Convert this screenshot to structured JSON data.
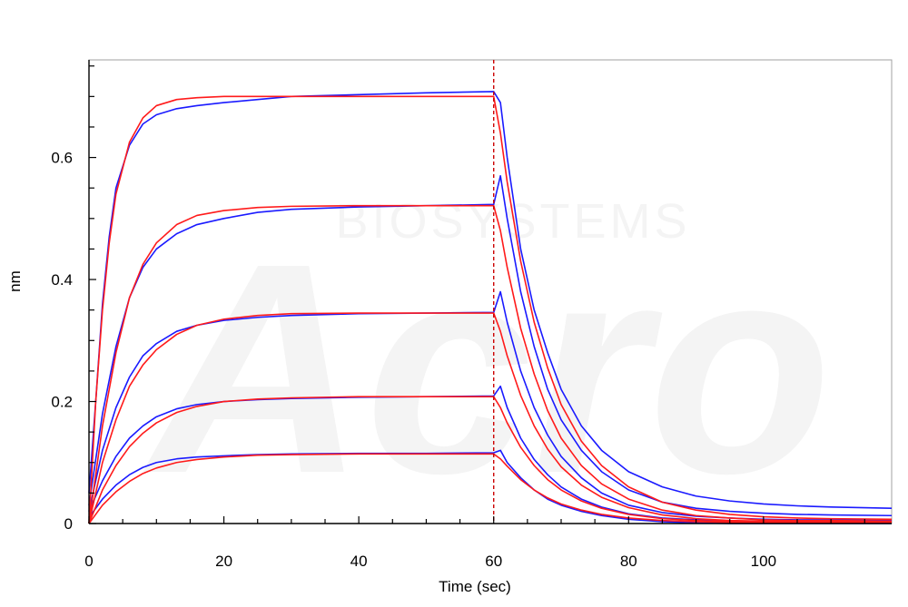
{
  "watermark": {
    "brand": "Acro",
    "sub": "BIOSYSTEMS"
  },
  "chart_data": {
    "type": "line",
    "title": "",
    "xlabel": "Time (sec)",
    "ylabel": "nm",
    "xlim": [
      0,
      119
    ],
    "ylim": [
      0,
      0.76
    ],
    "xticks": [
      0,
      20,
      40,
      60,
      80,
      100
    ],
    "xtick_labels": [
      "0",
      "20",
      "40",
      "60",
      "80",
      "100"
    ],
    "yticks": [
      0,
      0.2,
      0.4,
      0.6
    ],
    "ytick_labels": [
      "0",
      "0.2",
      "0.4",
      "0.6"
    ],
    "grid": false,
    "legend": "none",
    "dissociation_start": 60,
    "colors": {
      "measured": "#1a1aff",
      "fit": "#ff1a1a",
      "marker": "#cc0000"
    },
    "series": [
      {
        "role": "measured",
        "x": [
          0,
          1,
          2,
          3,
          4,
          6,
          8,
          10,
          13,
          16,
          20,
          25,
          30,
          40,
          50,
          60,
          61,
          62,
          64,
          66,
          68,
          70,
          73,
          76,
          80,
          85,
          90,
          95,
          100,
          105,
          110,
          119
        ],
        "y": [
          0.05,
          0.2,
          0.36,
          0.47,
          0.55,
          0.62,
          0.655,
          0.67,
          0.68,
          0.685,
          0.69,
          0.695,
          0.7,
          0.703,
          0.706,
          0.708,
          0.69,
          0.6,
          0.45,
          0.35,
          0.28,
          0.22,
          0.16,
          0.12,
          0.085,
          0.06,
          0.045,
          0.037,
          0.032,
          0.029,
          0.027,
          0.025
        ]
      },
      {
        "role": "fit",
        "x": [
          0,
          1,
          2,
          3,
          4,
          6,
          8,
          10,
          13,
          16,
          20,
          25,
          30,
          40,
          50,
          60,
          61,
          62,
          64,
          66,
          68,
          70,
          73,
          76,
          80,
          85,
          90,
          95,
          100,
          105,
          110,
          119
        ],
        "y": [
          0.0,
          0.2,
          0.35,
          0.46,
          0.54,
          0.625,
          0.665,
          0.685,
          0.695,
          0.698,
          0.7,
          0.7,
          0.7,
          0.7,
          0.7,
          0.7,
          0.64,
          0.56,
          0.43,
          0.33,
          0.255,
          0.195,
          0.135,
          0.095,
          0.06,
          0.035,
          0.022,
          0.015,
          0.011,
          0.009,
          0.008,
          0.007
        ]
      },
      {
        "role": "measured",
        "x": [
          0,
          2,
          4,
          6,
          8,
          10,
          13,
          16,
          20,
          25,
          30,
          40,
          50,
          60,
          61,
          62,
          64,
          66,
          68,
          70,
          73,
          76,
          80,
          85,
          90,
          95,
          100,
          105,
          110,
          119
        ],
        "y": [
          0.03,
          0.18,
          0.29,
          0.37,
          0.42,
          0.45,
          0.475,
          0.49,
          0.5,
          0.51,
          0.515,
          0.519,
          0.521,
          0.523,
          0.57,
          0.5,
          0.38,
          0.29,
          0.22,
          0.17,
          0.12,
          0.085,
          0.055,
          0.035,
          0.025,
          0.02,
          0.017,
          0.015,
          0.014,
          0.013
        ]
      },
      {
        "role": "fit",
        "x": [
          0,
          2,
          4,
          6,
          8,
          10,
          13,
          16,
          20,
          25,
          30,
          40,
          50,
          60,
          61,
          62,
          64,
          66,
          68,
          70,
          73,
          76,
          80,
          85,
          90,
          95,
          100,
          105,
          110,
          119
        ],
        "y": [
          0.0,
          0.16,
          0.28,
          0.37,
          0.425,
          0.46,
          0.49,
          0.505,
          0.513,
          0.518,
          0.52,
          0.521,
          0.521,
          0.521,
          0.48,
          0.42,
          0.32,
          0.245,
          0.185,
          0.14,
          0.095,
          0.065,
          0.04,
          0.022,
          0.013,
          0.009,
          0.006,
          0.005,
          0.005,
          0.004
        ]
      },
      {
        "role": "measured",
        "x": [
          0,
          2,
          4,
          6,
          8,
          10,
          13,
          16,
          20,
          25,
          30,
          40,
          50,
          60,
          61,
          62,
          64,
          66,
          68,
          70,
          73,
          76,
          80,
          85,
          90,
          95,
          100,
          105,
          110,
          119
        ],
        "y": [
          0.02,
          0.12,
          0.19,
          0.24,
          0.275,
          0.295,
          0.315,
          0.325,
          0.333,
          0.338,
          0.341,
          0.344,
          0.345,
          0.346,
          0.38,
          0.33,
          0.25,
          0.19,
          0.145,
          0.11,
          0.075,
          0.05,
          0.03,
          0.018,
          0.012,
          0.009,
          0.007,
          0.006,
          0.006,
          0.005
        ]
      },
      {
        "role": "fit",
        "x": [
          0,
          2,
          4,
          6,
          8,
          10,
          13,
          16,
          20,
          25,
          30,
          40,
          50,
          60,
          61,
          62,
          64,
          66,
          68,
          70,
          73,
          76,
          80,
          85,
          90,
          95,
          100,
          105,
          110,
          119
        ],
        "y": [
          0.0,
          0.1,
          0.17,
          0.225,
          0.26,
          0.285,
          0.31,
          0.325,
          0.335,
          0.341,
          0.344,
          0.345,
          0.345,
          0.345,
          0.315,
          0.275,
          0.21,
          0.16,
          0.122,
          0.093,
          0.063,
          0.043,
          0.026,
          0.014,
          0.008,
          0.005,
          0.004,
          0.003,
          0.003,
          0.003
        ]
      },
      {
        "role": "measured",
        "x": [
          0,
          2,
          4,
          6,
          8,
          10,
          13,
          16,
          20,
          25,
          30,
          40,
          50,
          60,
          61,
          62,
          64,
          66,
          68,
          70,
          73,
          76,
          80,
          85,
          90,
          95,
          100,
          105,
          110,
          119
        ],
        "y": [
          0.02,
          0.07,
          0.11,
          0.14,
          0.16,
          0.175,
          0.188,
          0.195,
          0.2,
          0.203,
          0.205,
          0.207,
          0.208,
          0.209,
          0.225,
          0.19,
          0.14,
          0.105,
          0.08,
          0.06,
          0.04,
          0.027,
          0.016,
          0.009,
          0.006,
          0.004,
          0.003,
          0.003,
          0.002,
          0.002
        ]
      },
      {
        "role": "fit",
        "x": [
          0,
          2,
          4,
          6,
          8,
          10,
          13,
          16,
          20,
          25,
          30,
          40,
          50,
          60,
          61,
          62,
          64,
          66,
          68,
          70,
          73,
          76,
          80,
          85,
          90,
          95,
          100,
          105,
          110,
          119
        ],
        "y": [
          0.0,
          0.055,
          0.095,
          0.126,
          0.148,
          0.165,
          0.182,
          0.192,
          0.2,
          0.204,
          0.206,
          0.208,
          0.208,
          0.208,
          0.19,
          0.165,
          0.125,
          0.095,
          0.072,
          0.055,
          0.037,
          0.025,
          0.015,
          0.008,
          0.005,
          0.003,
          0.002,
          0.002,
          0.002,
          0.002
        ]
      },
      {
        "role": "measured",
        "x": [
          0,
          2,
          4,
          6,
          8,
          10,
          13,
          16,
          20,
          25,
          30,
          40,
          50,
          60,
          61,
          62,
          64,
          66,
          68,
          70,
          73,
          76,
          80,
          85,
          90,
          95,
          100,
          105,
          110,
          119
        ],
        "y": [
          0.01,
          0.04,
          0.063,
          0.08,
          0.092,
          0.1,
          0.106,
          0.109,
          0.111,
          0.113,
          0.114,
          0.115,
          0.115,
          0.116,
          0.12,
          0.1,
          0.075,
          0.055,
          0.04,
          0.03,
          0.02,
          0.013,
          0.007,
          0.003,
          0.001,
          0.0,
          0.0,
          0.0,
          0.0,
          0.0
        ]
      },
      {
        "role": "fit",
        "x": [
          0,
          2,
          4,
          6,
          8,
          10,
          13,
          16,
          20,
          25,
          30,
          40,
          50,
          60,
          61,
          62,
          64,
          66,
          68,
          70,
          73,
          76,
          80,
          85,
          90,
          95,
          100,
          105,
          110,
          119
        ],
        "y": [
          0.0,
          0.03,
          0.052,
          0.069,
          0.082,
          0.091,
          0.1,
          0.105,
          0.109,
          0.112,
          0.113,
          0.114,
          0.114,
          0.114,
          0.106,
          0.094,
          0.072,
          0.055,
          0.042,
          0.032,
          0.022,
          0.015,
          0.009,
          0.005,
          0.003,
          0.002,
          0.001,
          0.001,
          0.001,
          0.001
        ]
      }
    ]
  }
}
